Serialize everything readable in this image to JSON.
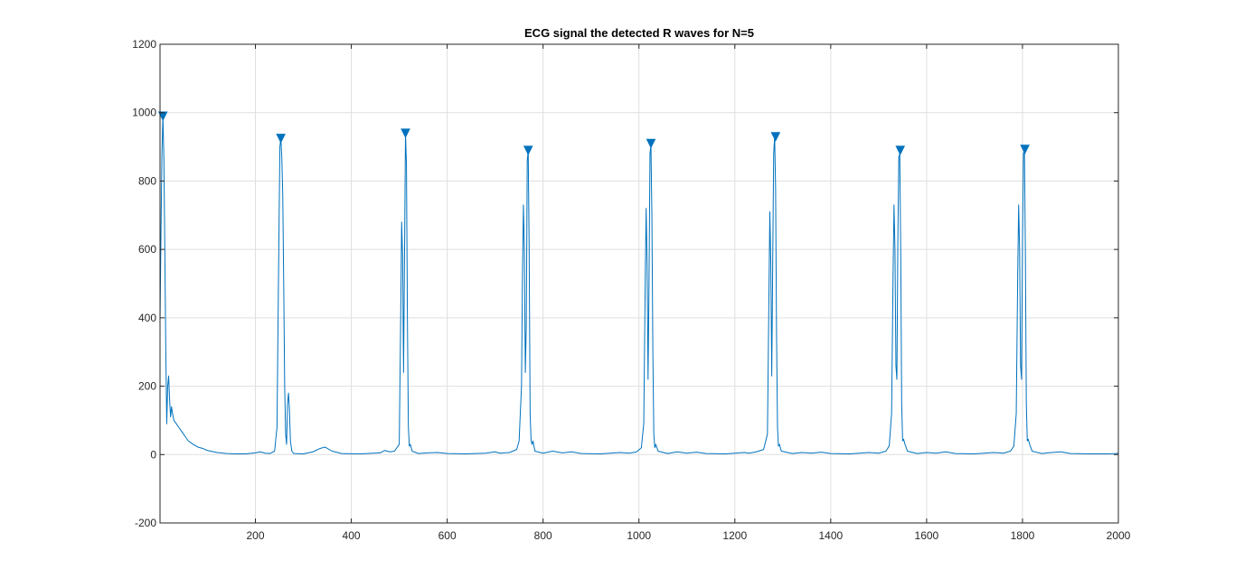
{
  "chart_data": {
    "type": "line",
    "title": "ECG signal the detected R waves for N=5",
    "xlabel": "",
    "ylabel": "",
    "xlim": [
      1,
      2000
    ],
    "ylim": [
      -200,
      1200
    ],
    "x_ticks": [
      200,
      400,
      600,
      800,
      1000,
      1200,
      1400,
      1600,
      1800,
      2000
    ],
    "y_ticks": [
      -200,
      0,
      200,
      400,
      600,
      800,
      1000,
      1200
    ],
    "x_tick_labels": [
      "200",
      "400",
      "600",
      "800",
      "1000",
      "1200",
      "1400",
      "1600",
      "1800",
      "2000"
    ],
    "y_tick_labels": [
      "-200",
      "0",
      "200",
      "400",
      "600",
      "800",
      "1000",
      "1200"
    ],
    "grid": true,
    "legend": "none",
    "colors": {
      "signal": "#0072bd",
      "marker": "#0072bd",
      "grid": "#dfdfdf",
      "axes": "#262626"
    },
    "series": [
      {
        "type": "line",
        "points": [
          [
            1,
            390
          ],
          [
            3,
            650
          ],
          [
            5,
            880
          ],
          [
            7,
            990
          ],
          [
            9,
            870
          ],
          [
            11,
            600
          ],
          [
            13,
            310
          ],
          [
            15,
            90
          ],
          [
            17,
            200
          ],
          [
            19,
            230
          ],
          [
            21,
            160
          ],
          [
            23,
            110
          ],
          [
            25,
            140
          ],
          [
            27,
            120
          ],
          [
            30,
            100
          ],
          [
            35,
            90
          ],
          [
            40,
            80
          ],
          [
            45,
            70
          ],
          [
            50,
            60
          ],
          [
            55,
            50
          ],
          [
            60,
            40
          ],
          [
            70,
            30
          ],
          [
            80,
            22
          ],
          [
            90,
            18
          ],
          [
            100,
            12
          ],
          [
            120,
            6
          ],
          [
            140,
            3
          ],
          [
            160,
            2
          ],
          [
            180,
            2
          ],
          [
            200,
            5
          ],
          [
            210,
            8
          ],
          [
            220,
            4
          ],
          [
            230,
            3
          ],
          [
            240,
            10
          ],
          [
            245,
            80
          ],
          [
            248,
            500
          ],
          [
            251,
            900
          ],
          [
            253,
            925
          ],
          [
            255,
            870
          ],
          [
            257,
            760
          ],
          [
            259,
            500
          ],
          [
            261,
            200
          ],
          [
            263,
            60
          ],
          [
            265,
            30
          ],
          [
            267,
            150
          ],
          [
            269,
            180
          ],
          [
            271,
            130
          ],
          [
            273,
            40
          ],
          [
            276,
            10
          ],
          [
            280,
            3
          ],
          [
            300,
            2
          ],
          [
            320,
            8
          ],
          [
            335,
            18
          ],
          [
            345,
            22
          ],
          [
            360,
            10
          ],
          [
            380,
            3
          ],
          [
            420,
            2
          ],
          [
            460,
            5
          ],
          [
            470,
            12
          ],
          [
            480,
            8
          ],
          [
            490,
            10
          ],
          [
            500,
            30
          ],
          [
            503,
            400
          ],
          [
            505,
            680
          ],
          [
            507,
            580
          ],
          [
            509,
            240
          ],
          [
            511,
            580
          ],
          [
            513,
            940
          ],
          [
            515,
            850
          ],
          [
            517,
            400
          ],
          [
            519,
            80
          ],
          [
            521,
            25
          ],
          [
            523,
            30
          ],
          [
            527,
            10
          ],
          [
            540,
            3
          ],
          [
            560,
            5
          ],
          [
            580,
            6
          ],
          [
            600,
            3
          ],
          [
            640,
            2
          ],
          [
            680,
            4
          ],
          [
            700,
            8
          ],
          [
            710,
            4
          ],
          [
            730,
            6
          ],
          [
            745,
            15
          ],
          [
            750,
            40
          ],
          [
            755,
            200
          ],
          [
            757,
            520
          ],
          [
            759,
            730
          ],
          [
            761,
            600
          ],
          [
            763,
            240
          ],
          [
            765,
            380
          ],
          [
            767,
            860
          ],
          [
            769,
            890
          ],
          [
            771,
            600
          ],
          [
            773,
            120
          ],
          [
            775,
            40
          ],
          [
            777,
            30
          ],
          [
            779,
            40
          ],
          [
            783,
            10
          ],
          [
            800,
            4
          ],
          [
            820,
            10
          ],
          [
            840,
            5
          ],
          [
            860,
            8
          ],
          [
            880,
            3
          ],
          [
            920,
            2
          ],
          [
            960,
            6
          ],
          [
            980,
            4
          ],
          [
            995,
            8
          ],
          [
            1005,
            20
          ],
          [
            1010,
            90
          ],
          [
            1013,
            500
          ],
          [
            1015,
            720
          ],
          [
            1017,
            560
          ],
          [
            1019,
            220
          ],
          [
            1021,
            500
          ],
          [
            1023,
            880
          ],
          [
            1025,
            905
          ],
          [
            1027,
            700
          ],
          [
            1029,
            300
          ],
          [
            1031,
            60
          ],
          [
            1033,
            20
          ],
          [
            1035,
            30
          ],
          [
            1040,
            10
          ],
          [
            1060,
            3
          ],
          [
            1080,
            8
          ],
          [
            1100,
            4
          ],
          [
            1120,
            7
          ],
          [
            1140,
            3
          ],
          [
            1180,
            2
          ],
          [
            1220,
            6
          ],
          [
            1230,
            4
          ],
          [
            1245,
            8
          ],
          [
            1260,
            15
          ],
          [
            1268,
            60
          ],
          [
            1271,
            450
          ],
          [
            1273,
            710
          ],
          [
            1275,
            560
          ],
          [
            1277,
            230
          ],
          [
            1279,
            560
          ],
          [
            1281,
            880
          ],
          [
            1283,
            930
          ],
          [
            1285,
            780
          ],
          [
            1287,
            350
          ],
          [
            1289,
            80
          ],
          [
            1291,
            25
          ],
          [
            1293,
            30
          ],
          [
            1297,
            10
          ],
          [
            1320,
            3
          ],
          [
            1340,
            6
          ],
          [
            1360,
            4
          ],
          [
            1380,
            7
          ],
          [
            1400,
            3
          ],
          [
            1440,
            2
          ],
          [
            1480,
            6
          ],
          [
            1500,
            4
          ],
          [
            1515,
            10
          ],
          [
            1522,
            25
          ],
          [
            1527,
            120
          ],
          [
            1530,
            520
          ],
          [
            1532,
            730
          ],
          [
            1534,
            600
          ],
          [
            1536,
            260
          ],
          [
            1538,
            220
          ],
          [
            1540,
            620
          ],
          [
            1542,
            870
          ],
          [
            1544,
            880
          ],
          [
            1546,
            600
          ],
          [
            1548,
            150
          ],
          [
            1550,
            40
          ],
          [
            1552,
            45
          ],
          [
            1555,
            30
          ],
          [
            1560,
            10
          ],
          [
            1580,
            3
          ],
          [
            1600,
            6
          ],
          [
            1620,
            4
          ],
          [
            1640,
            8
          ],
          [
            1660,
            3
          ],
          [
            1700,
            2
          ],
          [
            1740,
            6
          ],
          [
            1760,
            4
          ],
          [
            1775,
            10
          ],
          [
            1782,
            25
          ],
          [
            1787,
            120
          ],
          [
            1790,
            520
          ],
          [
            1792,
            730
          ],
          [
            1794,
            600
          ],
          [
            1796,
            260
          ],
          [
            1798,
            220
          ],
          [
            1800,
            620
          ],
          [
            1802,
            880
          ],
          [
            1804,
            890
          ],
          [
            1806,
            600
          ],
          [
            1808,
            150
          ],
          [
            1810,
            40
          ],
          [
            1812,
            45
          ],
          [
            1815,
            30
          ],
          [
            1820,
            10
          ],
          [
            1840,
            3
          ],
          [
            1860,
            6
          ],
          [
            1880,
            8
          ],
          [
            1900,
            3
          ],
          [
            1940,
            2
          ],
          [
            1980,
            2
          ],
          [
            1995,
            3
          ],
          [
            2000,
            4
          ]
        ]
      },
      {
        "type": "marker",
        "marker": "triangle-down",
        "points": [
          [
            7,
            990
          ],
          [
            253,
            925
          ],
          [
            513,
            940
          ],
          [
            769,
            890
          ],
          [
            1025,
            910
          ],
          [
            1285,
            930
          ],
          [
            1545,
            890
          ],
          [
            1805,
            893
          ]
        ]
      }
    ]
  }
}
